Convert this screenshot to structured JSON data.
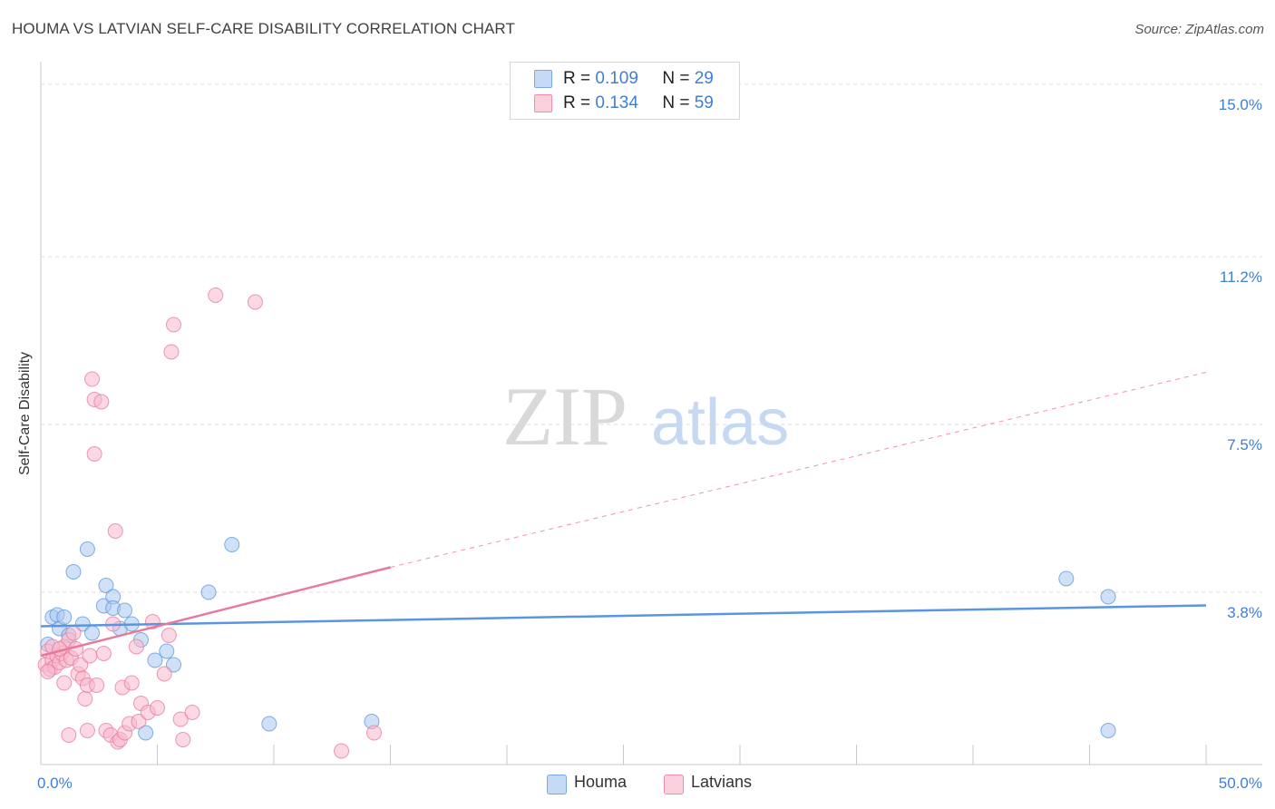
{
  "title": "HOUMA VS LATVIAN SELF-CARE DISABILITY CORRELATION CHART",
  "source": "Source: ZipAtlas.com",
  "watermark": {
    "part1": "ZIP",
    "part2": "atlas"
  },
  "legend_top": [
    {
      "r_label": "R =",
      "r_value": "0.109",
      "n_label": "N =",
      "n_value": "29",
      "color": "#a9c8f0"
    },
    {
      "r_label": "R =",
      "r_value": "0.134",
      "n_label": "N =",
      "n_value": "59",
      "color": "#f7b8cc"
    }
  ],
  "legend_bottom": [
    {
      "label": "Houma",
      "color": "#a9c8f0"
    },
    {
      "label": "Latvians",
      "color": "#f7b8cc"
    }
  ],
  "chart_data": {
    "type": "scatter",
    "title": "HOUMA VS LATVIAN SELF-CARE DISABILITY CORRELATION CHART",
    "xlabel": "",
    "ylabel": "Self-Care Disability",
    "xlim": [
      0,
      50
    ],
    "ylim": [
      0,
      15.5
    ],
    "x_tick_labels": [
      "0.0%",
      "50.0%"
    ],
    "y_ticks": [
      3.8,
      7.5,
      11.2,
      15.0
    ],
    "y_tick_labels": [
      "3.8%",
      "7.5%",
      "11.2%",
      "15.0%"
    ],
    "grid": true,
    "legend_position": "top-center",
    "series": [
      {
        "name": "Houma",
        "color": "#5b95df",
        "fill": "#a9c8f0",
        "trend": {
          "x": [
            0,
            50
          ],
          "y": [
            3.05,
            3.51
          ],
          "style": "solid"
        },
        "points": [
          [
            0.3,
            2.65
          ],
          [
            0.5,
            3.25
          ],
          [
            0.7,
            3.3
          ],
          [
            0.8,
            3.0
          ],
          [
            1.0,
            3.25
          ],
          [
            1.2,
            2.85
          ],
          [
            1.4,
            4.25
          ],
          [
            1.8,
            3.1
          ],
          [
            2.0,
            4.75
          ],
          [
            2.2,
            2.9
          ],
          [
            2.7,
            3.5
          ],
          [
            2.8,
            3.95
          ],
          [
            3.1,
            3.7
          ],
          [
            3.1,
            3.45
          ],
          [
            3.4,
            3.0
          ],
          [
            3.6,
            3.4
          ],
          [
            3.9,
            3.1
          ],
          [
            4.3,
            2.75
          ],
          [
            4.9,
            2.3
          ],
          [
            5.4,
            2.5
          ],
          [
            5.7,
            2.2
          ],
          [
            7.2,
            3.8
          ],
          [
            8.2,
            4.85
          ],
          [
            9.8,
            0.9
          ],
          [
            14.2,
            0.95
          ],
          [
            44.0,
            4.1
          ],
          [
            45.8,
            0.75
          ],
          [
            45.8,
            3.7
          ],
          [
            4.5,
            0.7
          ]
        ]
      },
      {
        "name": "Latvians",
        "color": "#e8799e",
        "fill": "#f7b8cc",
        "trend": {
          "x": [
            0,
            15
          ],
          "y": [
            2.4,
            4.35
          ],
          "style": "solid",
          "extended": {
            "x": [
              15,
              50
            ],
            "y": [
              4.35,
              8.65
            ]
          },
          "extended_style": "dashed"
        },
        "points": [
          [
            0.2,
            2.2
          ],
          [
            0.3,
            2.5
          ],
          [
            0.4,
            2.1
          ],
          [
            0.5,
            2.3
          ],
          [
            0.6,
            2.15
          ],
          [
            0.7,
            2.4
          ],
          [
            0.8,
            2.25
          ],
          [
            0.9,
            2.45
          ],
          [
            1.0,
            2.6
          ],
          [
            1.1,
            2.3
          ],
          [
            1.2,
            2.75
          ],
          [
            1.3,
            2.35
          ],
          [
            1.5,
            2.55
          ],
          [
            1.6,
            2.0
          ],
          [
            1.7,
            2.2
          ],
          [
            1.8,
            1.9
          ],
          [
            1.9,
            1.45
          ],
          [
            2.0,
            1.75
          ],
          [
            2.1,
            2.4
          ],
          [
            2.2,
            8.5
          ],
          [
            2.3,
            8.05
          ],
          [
            2.3,
            6.85
          ],
          [
            2.4,
            1.75
          ],
          [
            2.6,
            8.0
          ],
          [
            2.7,
            2.45
          ],
          [
            2.8,
            0.75
          ],
          [
            3.0,
            0.65
          ],
          [
            3.1,
            3.1
          ],
          [
            3.2,
            5.15
          ],
          [
            3.3,
            0.5
          ],
          [
            3.4,
            0.55
          ],
          [
            3.5,
            1.7
          ],
          [
            3.6,
            0.7
          ],
          [
            3.8,
            0.9
          ],
          [
            3.9,
            1.8
          ],
          [
            4.1,
            2.6
          ],
          [
            4.2,
            0.95
          ],
          [
            4.3,
            1.35
          ],
          [
            4.6,
            1.15
          ],
          [
            4.8,
            3.15
          ],
          [
            5.0,
            1.25
          ],
          [
            5.3,
            2.0
          ],
          [
            5.5,
            2.85
          ],
          [
            5.6,
            9.1
          ],
          [
            5.7,
            9.7
          ],
          [
            6.0,
            1.0
          ],
          [
            6.1,
            0.55
          ],
          [
            6.5,
            1.15
          ],
          [
            7.5,
            10.35
          ],
          [
            9.2,
            10.2
          ],
          [
            0.5,
            2.6
          ],
          [
            1.4,
            2.9
          ],
          [
            2.0,
            0.75
          ],
          [
            1.0,
            1.8
          ],
          [
            12.9,
            0.3
          ],
          [
            14.3,
            0.7
          ],
          [
            1.2,
            0.65
          ],
          [
            0.3,
            2.05
          ],
          [
            0.8,
            2.55
          ]
        ]
      }
    ]
  }
}
